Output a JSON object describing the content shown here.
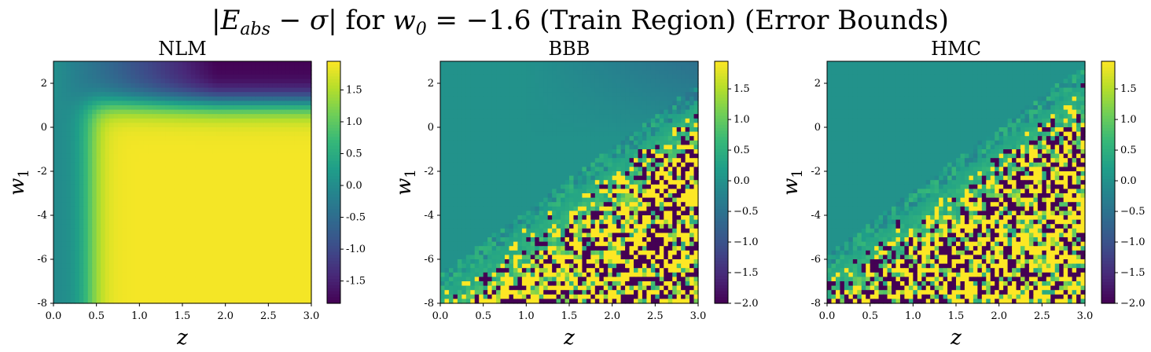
{
  "figure": {
    "title": "|E_abs − σ| for w_0 = −1.6 (Train Region) (Error Bounds)"
  },
  "chart_data": [
    {
      "type": "heatmap",
      "title": "NLM",
      "xlabel": "z",
      "ylabel": "w_1",
      "xlim": [
        0.0,
        3.0
      ],
      "ylim": [
        -8,
        3
      ],
      "xticks": [
        "0.0",
        "0.5",
        "1.0",
        "1.5",
        "2.0",
        "2.5",
        "3.0"
      ],
      "yticks": [
        "2",
        "0",
        "-2",
        "-4",
        "-6",
        "-8"
      ],
      "colorbar": {
        "range": [
          -1.85,
          1.95
        ],
        "ticks": [
          "1.5",
          "1.0",
          "0.5",
          "0.0",
          "-0.5",
          "-1.0",
          "-1.5"
        ]
      },
      "pattern": "smooth: low (~-1.8) at top-right (w1>1, z>1.5), high (~1.9) for w1<0 and z>0.5, mid values near z=0"
    },
    {
      "type": "heatmap",
      "title": "BBB",
      "xlabel": "z",
      "ylabel": "w_1",
      "xlim": [
        0.0,
        3.0
      ],
      "ylim": [
        -8,
        3
      ],
      "xticks": [
        "0.0",
        "0.5",
        "1.0",
        "1.5",
        "2.0",
        "2.5",
        "3.0"
      ],
      "yticks": [
        "2",
        "0",
        "-2",
        "-4",
        "-6",
        "-8"
      ],
      "colorbar": {
        "range": [
          -2.0,
          1.95
        ],
        "ticks": [
          "1.5",
          "1.0",
          "0.5",
          "0.0",
          "−0.5",
          "−1.0",
          "−1.5",
          "−2.0"
        ]
      },
      "pattern": "mostly ~0 (teal), slightly negative near top-right, noisy ±2 values in bottom-right (z>1.5, w1<-3)"
    },
    {
      "type": "heatmap",
      "title": "HMC",
      "xlabel": "z",
      "ylabel": "w_1",
      "xlim": [
        0.0,
        3.0
      ],
      "ylim": [
        -8,
        3
      ],
      "xticks": [
        "0.0",
        "0.5",
        "1.0",
        "1.5",
        "2.0",
        "2.5",
        "3.0"
      ],
      "yticks": [
        "2",
        "0",
        "-2",
        "-4",
        "-6",
        "-8"
      ],
      "colorbar": {
        "range": [
          -2.0,
          1.95
        ],
        "ticks": [
          "1.5",
          "1.0",
          "0.5",
          "0.0",
          "−0.5",
          "−1.0",
          "−1.5",
          "−2.0"
        ]
      },
      "pattern": "mostly ~0 (teal), noisy ±2 values in bottom-right (z>1.5, w1<-2)"
    }
  ]
}
